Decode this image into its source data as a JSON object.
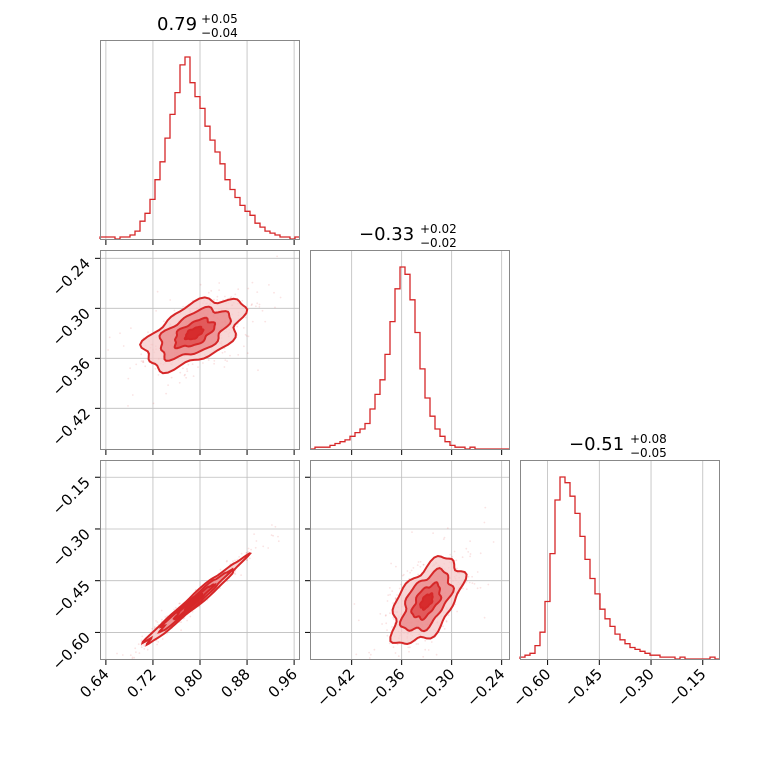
{
  "colors": {
    "main": "#d62728",
    "fill_light": "#f6c9ca",
    "fill_mid": "#ea8384",
    "fill_dark": "#de4547",
    "grid": "#bdbdbd",
    "frame": "#888888"
  },
  "titles": [
    {
      "value": "0.79",
      "plus": "+0.05",
      "minus": "−0.04"
    },
    {
      "value": "−0.33",
      "plus": "+0.02",
      "minus": "−0.02"
    },
    {
      "value": "−0.51",
      "plus": "+0.08",
      "minus": "−0.05"
    }
  ],
  "chart_data": {
    "type": "corner",
    "grid": true,
    "parameters": [
      {
        "range": [
          0.63,
          0.97
        ],
        "median": 0.79,
        "ticks": [
          0.64,
          0.72,
          0.8,
          0.88,
          0.96
        ],
        "tick_labels": [
          "0.64",
          "0.72",
          "0.80",
          "0.88",
          "0.96"
        ]
      },
      {
        "range": [
          -0.47,
          -0.23
        ],
        "median": -0.33,
        "ticks": [
          -0.42,
          -0.36,
          -0.3,
          -0.24
        ],
        "tick_labels": [
          "−0.42",
          "−0.36",
          "−0.30",
          "−0.24"
        ]
      },
      {
        "range": [
          -0.68,
          -0.1
        ],
        "median": -0.51,
        "ticks": [
          -0.6,
          -0.45,
          -0.3,
          -0.15
        ],
        "tick_labels": [
          "−0.60",
          "−0.45",
          "−0.30",
          "−0.15"
        ]
      }
    ],
    "histograms": [
      {
        "bins": [
          0.63,
          0.6385,
          0.647,
          0.6555,
          0.664,
          0.6725,
          0.681,
          0.6895,
          0.698,
          0.7065,
          0.715,
          0.7235,
          0.732,
          0.7405,
          0.749,
          0.7575,
          0.766,
          0.7745,
          0.783,
          0.7915,
          0.8,
          0.8085,
          0.817,
          0.8255,
          0.834,
          0.8425,
          0.851,
          0.8595,
          0.868,
          0.8765,
          0.885,
          0.8935,
          0.902,
          0.9105,
          0.919,
          0.9275,
          0.936,
          0.9445,
          0.953,
          0.9615,
          0.97
        ],
        "counts": [
          1,
          1,
          1,
          0,
          1,
          1,
          2,
          4,
          9,
          13,
          20,
          30,
          39,
          51,
          63,
          74,
          88,
          92,
          79,
          72,
          66,
          57,
          50,
          44,
          38,
          30,
          25,
          21,
          17,
          14,
          12,
          8,
          6,
          4,
          3,
          2,
          1,
          1,
          0,
          1
        ]
      },
      {
        "bins": [
          -0.47,
          -0.464,
          -0.458,
          -0.452,
          -0.446,
          -0.44,
          -0.434,
          -0.428,
          -0.422,
          -0.416,
          -0.41,
          -0.404,
          -0.398,
          -0.392,
          -0.386,
          -0.38,
          -0.374,
          -0.368,
          -0.362,
          -0.356,
          -0.35,
          -0.344,
          -0.338,
          -0.332,
          -0.326,
          -0.32,
          -0.314,
          -0.308,
          -0.302,
          -0.296,
          -0.29,
          -0.284,
          -0.278,
          -0.272,
          -0.266,
          -0.26,
          -0.254,
          -0.248,
          -0.242,
          -0.236,
          -0.23
        ],
        "counts": [
          0,
          1,
          1,
          1,
          2,
          3,
          4,
          5,
          7,
          9,
          11,
          14,
          22,
          30,
          38,
          52,
          70,
          88,
          100,
          96,
          82,
          64,
          44,
          28,
          18,
          11,
          7,
          4,
          2,
          1,
          1,
          0,
          1,
          0,
          0,
          0,
          0,
          0,
          0,
          0
        ]
      },
      {
        "bins": [
          -0.68,
          -0.6655,
          -0.651,
          -0.6365,
          -0.622,
          -0.6075,
          -0.593,
          -0.5785,
          -0.564,
          -0.5495,
          -0.535,
          -0.5205,
          -0.506,
          -0.4915,
          -0.477,
          -0.4625,
          -0.448,
          -0.4335,
          -0.419,
          -0.4045,
          -0.39,
          -0.3755,
          -0.361,
          -0.3465,
          -0.332,
          -0.3175,
          -0.303,
          -0.2885,
          -0.274,
          -0.2595,
          -0.245,
          -0.2305,
          -0.216,
          -0.2015,
          -0.187,
          -0.1725,
          -0.158,
          -0.1435,
          -0.129,
          -0.1145,
          -0.1
        ],
        "counts": [
          1,
          2,
          3,
          7,
          14,
          30,
          55,
          83,
          95,
          92,
          85,
          76,
          64,
          52,
          42,
          34,
          26,
          21,
          17,
          13,
          10,
          8,
          6,
          5,
          4,
          3,
          2,
          2,
          1,
          1,
          1,
          0,
          1,
          0,
          0,
          0,
          0,
          0,
          1,
          0
        ]
      }
    ],
    "pairs": [
      {
        "x_param": 0,
        "y_param": 1,
        "center": [
          0.79,
          -0.33
        ],
        "sd": [
          0.042,
          0.021
        ],
        "rho": 0.55
      },
      {
        "x_param": 0,
        "y_param": 2,
        "center": [
          0.79,
          -0.51
        ],
        "sd": [
          0.042,
          0.062
        ],
        "rho": 0.985
      },
      {
        "x_param": 1,
        "y_param": 2,
        "center": [
          -0.33,
          -0.51
        ],
        "sd": [
          0.021,
          0.062
        ],
        "rho": 0.55
      }
    ]
  }
}
